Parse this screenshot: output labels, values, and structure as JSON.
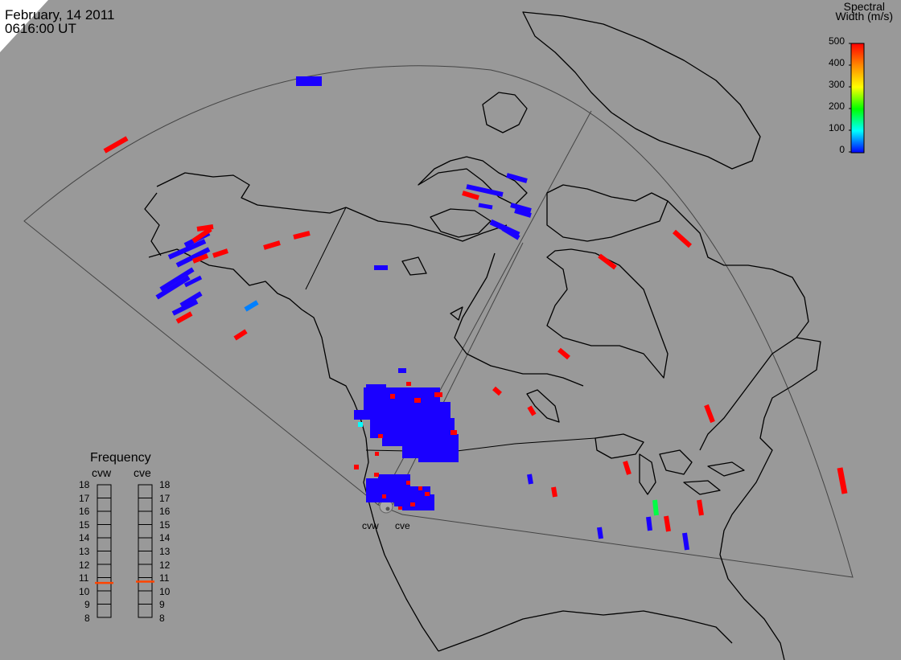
{
  "header": {
    "date": "February, 14 2011",
    "time": "0616:00 UT"
  },
  "colorbar": {
    "title_line1": "Spectral",
    "title_line2": "Width (m/s)",
    "ticks": [
      "500",
      "400",
      "300",
      "200",
      "100",
      "0"
    ],
    "gradient_colors": [
      "#ff0000",
      "#ff8800",
      "#ffff00",
      "#00ff00",
      "#00ffff",
      "#0000ff"
    ]
  },
  "frequency_panel": {
    "title": "Frequency",
    "radars": [
      "cvw",
      "cve"
    ],
    "ticks": [
      "18",
      "17",
      "16",
      "15",
      "14",
      "13",
      "12",
      "11",
      "10",
      "9",
      "8"
    ],
    "current_frequency_mhz": {
      "cvw": 10.6,
      "cve": 10.7
    },
    "marker_color": "#ff4400"
  },
  "radars": {
    "site_labels": [
      "cvw",
      "cve"
    ]
  },
  "colors": {
    "background": "#999999",
    "high_width": "#ff0000",
    "low_width": "#1a00ff",
    "mid_width": "#00ff44"
  }
}
